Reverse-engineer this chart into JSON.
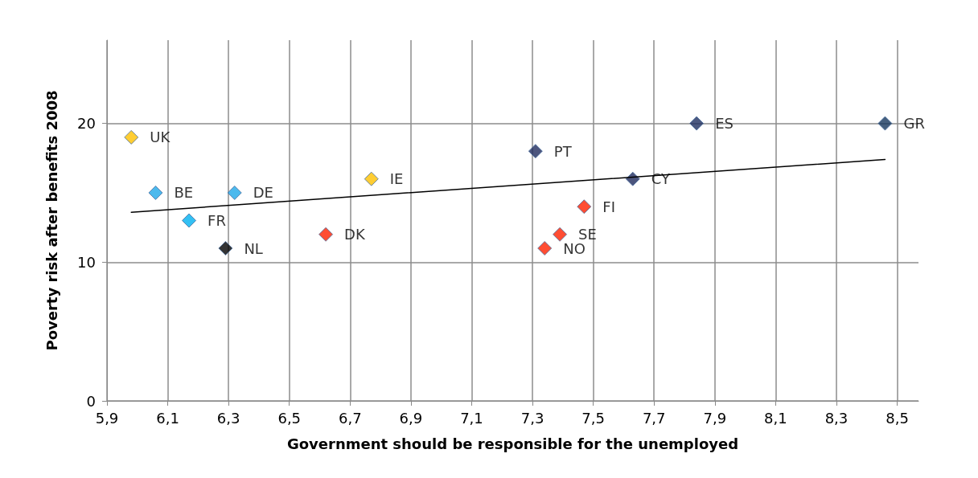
{
  "chart_data": {
    "type": "scatter",
    "xlabel": "Government should be responsible for the unemployed",
    "ylabel": "Poverty risk after benefits 2008",
    "xlim": [
      5.9,
      8.57
    ],
    "xticks": [
      {
        "value": 5.9,
        "label": "5,9"
      },
      {
        "value": 6.1,
        "label": "6,1"
      },
      {
        "value": 6.3,
        "label": "6,3"
      },
      {
        "value": 6.5,
        "label": "6,5"
      },
      {
        "value": 6.7,
        "label": "6,7"
      },
      {
        "value": 6.9,
        "label": "6,9"
      },
      {
        "value": 7.1,
        "label": "7,1"
      },
      {
        "value": 7.3,
        "label": "7,3"
      },
      {
        "value": 7.5,
        "label": "7,5"
      },
      {
        "value": 7.7,
        "label": "7,7"
      },
      {
        "value": 7.9,
        "label": "7,9"
      },
      {
        "value": 8.1,
        "label": "8,1"
      },
      {
        "value": 8.3,
        "label": "8,3"
      },
      {
        "value": 8.5,
        "label": "8,5"
      }
    ],
    "ylim": [
      0,
      26
    ],
    "yticks": [
      0,
      10,
      20
    ],
    "grid": true,
    "legend": false,
    "marker": "diamond",
    "series": [
      {
        "name": "UK",
        "color": "#ffc000",
        "x": [
          5.98
        ],
        "values": [
          19
        ]
      },
      {
        "name": "BE",
        "color": "#1fa8e8",
        "x": [
          6.06
        ],
        "values": [
          15
        ]
      },
      {
        "name": "DE",
        "color": "#1fa8e8",
        "x": [
          6.32
        ],
        "values": [
          15
        ]
      },
      {
        "name": "FR",
        "color": "#00b0f0",
        "x": [
          6.17
        ],
        "values": [
          13
        ]
      },
      {
        "name": "NL",
        "color": "#000000",
        "x": [
          6.29
        ],
        "values": [
          11
        ]
      },
      {
        "name": "DK",
        "color": "#ff2000",
        "x": [
          6.62
        ],
        "values": [
          12
        ]
      },
      {
        "name": "IE",
        "color": "#ffc000",
        "x": [
          6.77
        ],
        "values": [
          16
        ]
      },
      {
        "name": "PT",
        "color": "#1f2a5c",
        "x": [
          7.31
        ],
        "values": [
          18
        ]
      },
      {
        "name": "NO",
        "color": "#ff2000",
        "x": [
          7.34
        ],
        "values": [
          11
        ]
      },
      {
        "name": "SE",
        "color": "#ff2000",
        "x": [
          7.39
        ],
        "values": [
          12
        ]
      },
      {
        "name": "FI",
        "color": "#ff2000",
        "x": [
          7.47
        ],
        "values": [
          14
        ]
      },
      {
        "name": "CY",
        "color": "#1f2a5c",
        "x": [
          7.63
        ],
        "values": [
          16
        ]
      },
      {
        "name": "ES",
        "color": "#1f3060",
        "x": [
          7.84
        ],
        "values": [
          20
        ]
      },
      {
        "name": "GR",
        "color": "#17375e",
        "x": [
          8.46
        ],
        "values": [
          20
        ]
      },
      {
        "type": "line",
        "marker": "none",
        "color": "#000000",
        "x": [
          5.98,
          8.46
        ],
        "values": [
          13.6,
          17.4
        ]
      }
    ]
  }
}
